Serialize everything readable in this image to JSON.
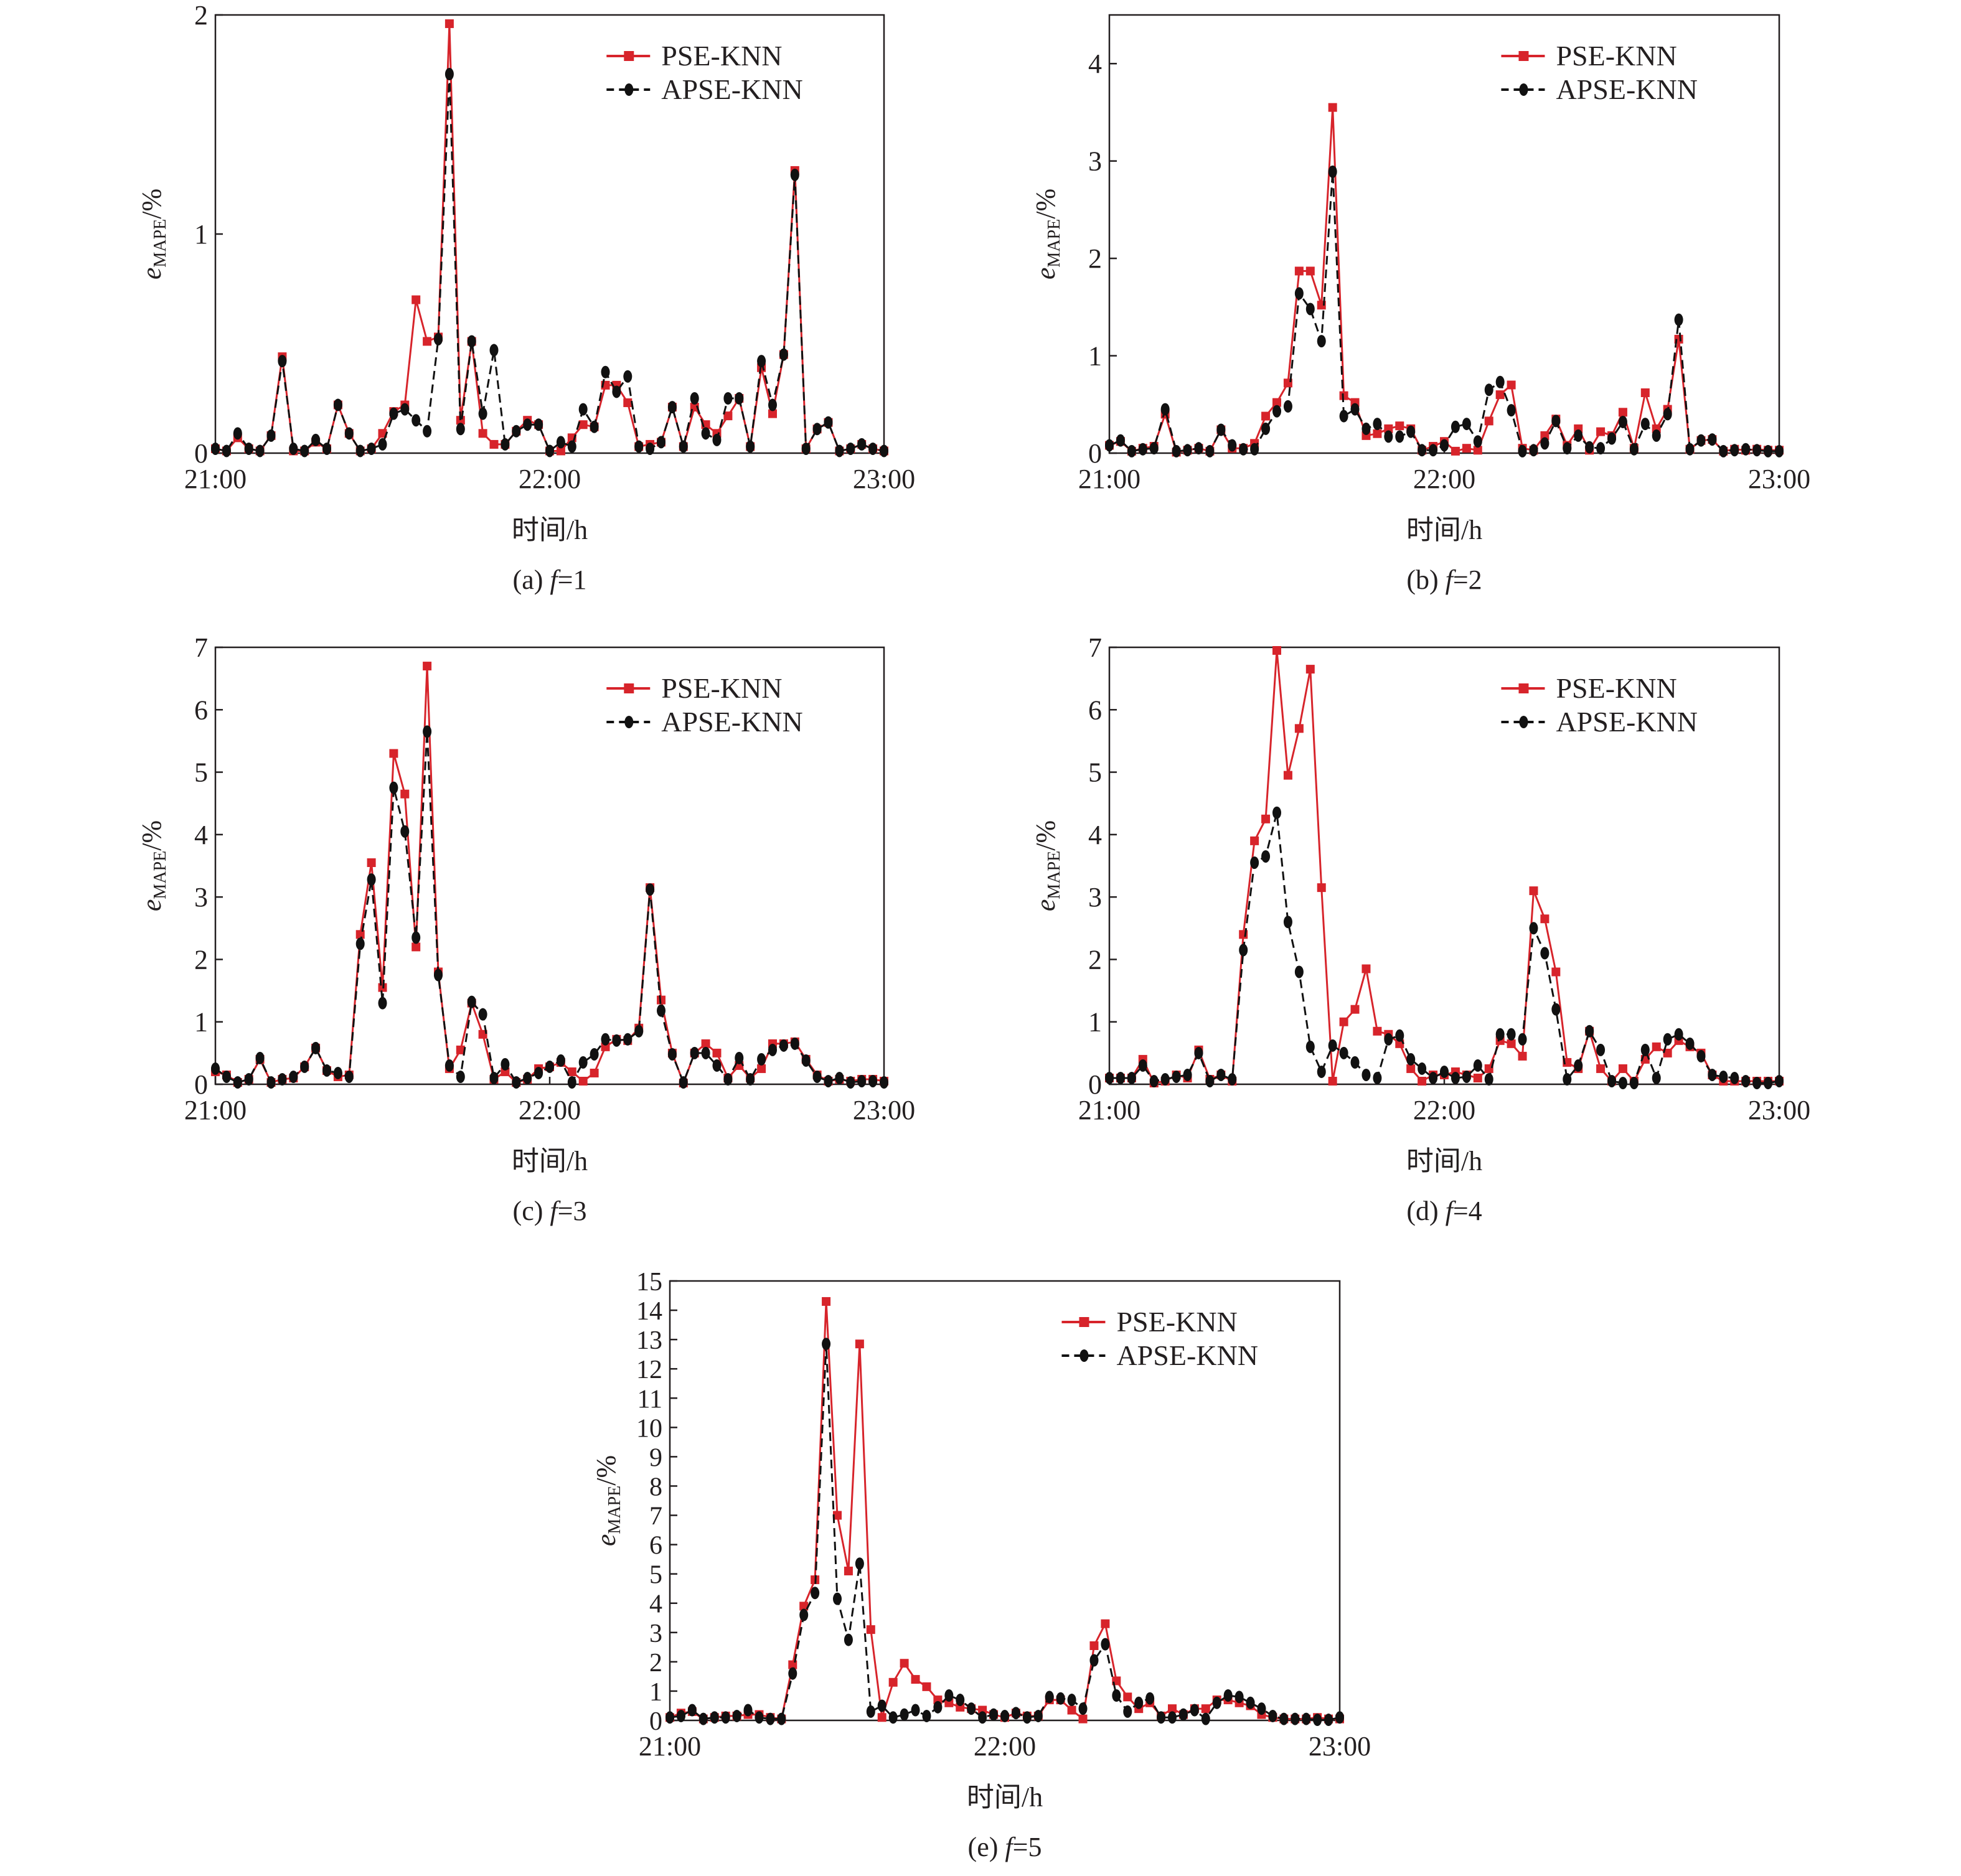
{
  "colors": {
    "pse": "#d7242b",
    "apse": "#111111",
    "axis": "#231f20"
  },
  "chart_data": [
    {
      "type": "line",
      "caption": {
        "label": "(a) ",
        "variable": "f",
        "value": "=1"
      },
      "xlabel": "时间/h",
      "ylabel": {
        "symbol": "e",
        "subscript": "MAPE",
        "unit": "/%"
      },
      "xticks": [
        "21:00",
        "22:00",
        "23:00"
      ],
      "ylim": [
        0,
        2
      ],
      "yticks": [
        0,
        1,
        2
      ],
      "legend": [
        "PSE-KNN",
        "APSE-KNN"
      ],
      "legend_position": "top-right",
      "grid": false,
      "x_points": "61 samples, 2-min interval, 21:00-23:00",
      "series": [
        {
          "name": "PSE-KNN",
          "values": [
            0.02,
            0.01,
            0.07,
            0.02,
            0.01,
            0.08,
            0.44,
            0.01,
            0.01,
            0.05,
            0.02,
            0.22,
            0.09,
            0.01,
            0.02,
            0.09,
            0.19,
            0.22,
            0.7,
            0.51,
            0.53,
            1.96,
            0.15,
            0.51,
            0.09,
            0.04,
            0.04,
            0.1,
            0.15,
            0.13,
            0.01,
            0.01,
            0.07,
            0.13,
            0.12,
            0.31,
            0.31,
            0.23,
            0.03,
            0.04,
            0.05,
            0.21,
            0.03,
            0.21,
            0.13,
            0.09,
            0.17,
            0.25,
            0.03,
            0.39,
            0.18,
            0.45,
            1.29,
            0.02,
            0.11,
            0.14,
            0.01,
            0.02,
            0.04,
            0.02,
            0.01
          ]
        },
        {
          "name": "APSE-KNN",
          "values": [
            0.02,
            0.01,
            0.09,
            0.02,
            0.01,
            0.08,
            0.42,
            0.02,
            0.01,
            0.06,
            0.02,
            0.22,
            0.09,
            0.01,
            0.02,
            0.04,
            0.18,
            0.2,
            0.15,
            0.1,
            0.52,
            1.73,
            0.11,
            0.51,
            0.18,
            0.47,
            0.04,
            0.1,
            0.13,
            0.13,
            0.01,
            0.05,
            0.03,
            0.2,
            0.12,
            0.37,
            0.28,
            0.35,
            0.03,
            0.02,
            0.05,
            0.21,
            0.03,
            0.25,
            0.09,
            0.06,
            0.25,
            0.25,
            0.03,
            0.42,
            0.22,
            0.45,
            1.27,
            0.02,
            0.11,
            0.14,
            0.01,
            0.02,
            0.04,
            0.02,
            0.01
          ]
        }
      ]
    },
    {
      "type": "line",
      "caption": {
        "label": "(b) ",
        "variable": "f",
        "value": "=2"
      },
      "xlabel": "时间/h",
      "ylabel": {
        "symbol": "e",
        "subscript": "MAPE",
        "unit": "/%"
      },
      "xticks": [
        "21:00",
        "22:00",
        "23:00"
      ],
      "ylim": [
        0,
        4.5
      ],
      "yticks": [
        0,
        1,
        2,
        3,
        4
      ],
      "legend": [
        "PSE-KNN",
        "APSE-KNN"
      ],
      "legend_position": "top-right",
      "grid": false,
      "series": [
        {
          "name": "PSE-KNN",
          "values": [
            0.08,
            0.12,
            0.02,
            0.05,
            0.07,
            0.4,
            0.01,
            0.03,
            0.05,
            0.02,
            0.24,
            0.05,
            0.05,
            0.1,
            0.38,
            0.52,
            0.72,
            1.87,
            1.87,
            1.52,
            3.55,
            0.59,
            0.52,
            0.18,
            0.2,
            0.25,
            0.28,
            0.25,
            0.03,
            0.07,
            0.12,
            0.02,
            0.05,
            0.03,
            0.33,
            0.6,
            0.7,
            0.05,
            0.03,
            0.18,
            0.35,
            0.08,
            0.25,
            0.03,
            0.22,
            0.18,
            0.42,
            0.05,
            0.62,
            0.25,
            0.45,
            1.17,
            0.04,
            0.13,
            0.14,
            0.02,
            0.04,
            0.03,
            0.04,
            0.03,
            0.03
          ]
        },
        {
          "name": "APSE-KNN",
          "values": [
            0.08,
            0.13,
            0.02,
            0.04,
            0.05,
            0.45,
            0.02,
            0.03,
            0.05,
            0.02,
            0.24,
            0.08,
            0.04,
            0.04,
            0.25,
            0.43,
            0.48,
            1.64,
            1.48,
            1.15,
            2.89,
            0.38,
            0.45,
            0.25,
            0.3,
            0.17,
            0.17,
            0.22,
            0.03,
            0.03,
            0.08,
            0.27,
            0.3,
            0.12,
            0.65,
            0.73,
            0.44,
            0.02,
            0.03,
            0.1,
            0.33,
            0.05,
            0.18,
            0.06,
            0.05,
            0.15,
            0.32,
            0.04,
            0.3,
            0.18,
            0.4,
            1.37,
            0.04,
            0.13,
            0.14,
            0.02,
            0.03,
            0.04,
            0.03,
            0.02,
            0.02
          ]
        }
      ]
    },
    {
      "type": "line",
      "caption": {
        "label": "(c) ",
        "variable": "f",
        "value": "=3"
      },
      "xlabel": "时间/h",
      "ylabel": {
        "symbol": "e",
        "subscript": "MAPE",
        "unit": "/%"
      },
      "xticks": [
        "21:00",
        "22:00",
        "23:00"
      ],
      "ylim": [
        0,
        7
      ],
      "yticks": [
        0,
        1,
        2,
        3,
        4,
        5,
        6,
        7
      ],
      "legend": [
        "PSE-KNN",
        "APSE-KNN"
      ],
      "legend_position": "top-right",
      "grid": false,
      "series": [
        {
          "name": "PSE-KNN",
          "values": [
            0.2,
            0.15,
            0.03,
            0.08,
            0.4,
            0.03,
            0.08,
            0.1,
            0.28,
            0.58,
            0.22,
            0.12,
            0.15,
            2.4,
            3.55,
            1.55,
            5.3,
            4.65,
            2.2,
            6.7,
            1.8,
            0.25,
            0.55,
            1.3,
            0.8,
            0.08,
            0.2,
            0.03,
            0.08,
            0.25,
            0.28,
            0.35,
            0.2,
            0.05,
            0.18,
            0.6,
            0.72,
            0.7,
            0.9,
            3.15,
            1.35,
            0.5,
            0.02,
            0.5,
            0.65,
            0.5,
            0.1,
            0.3,
            0.1,
            0.25,
            0.65,
            0.65,
            0.68,
            0.4,
            0.15,
            0.05,
            0.08,
            0.05,
            0.08,
            0.08,
            0.05
          ]
        },
        {
          "name": "APSE-KNN",
          "values": [
            0.25,
            0.12,
            0.03,
            0.08,
            0.42,
            0.03,
            0.08,
            0.12,
            0.28,
            0.58,
            0.22,
            0.18,
            0.12,
            2.25,
            3.28,
            1.3,
            4.75,
            4.05,
            2.35,
            5.65,
            1.75,
            0.3,
            0.12,
            1.32,
            1.12,
            0.1,
            0.32,
            0.03,
            0.1,
            0.18,
            0.28,
            0.38,
            0.03,
            0.35,
            0.48,
            0.72,
            0.7,
            0.72,
            0.85,
            3.12,
            1.18,
            0.48,
            0.03,
            0.5,
            0.5,
            0.3,
            0.08,
            0.42,
            0.08,
            0.4,
            0.55,
            0.62,
            0.65,
            0.38,
            0.12,
            0.05,
            0.1,
            0.03,
            0.05,
            0.05,
            0.03
          ]
        }
      ]
    },
    {
      "type": "line",
      "caption": {
        "label": "(d) ",
        "variable": "f",
        "value": "=4"
      },
      "xlabel": "时间/h",
      "ylabel": {
        "symbol": "e",
        "subscript": "MAPE",
        "unit": "/%"
      },
      "xticks": [
        "21:00",
        "22:00",
        "23:00"
      ],
      "ylim": [
        0,
        7
      ],
      "yticks": [
        0,
        1,
        2,
        3,
        4,
        5,
        6,
        7
      ],
      "legend": [
        "PSE-KNN",
        "APSE-KNN"
      ],
      "legend_position": "top-right",
      "grid": false,
      "series": [
        {
          "name": "PSE-KNN",
          "values": [
            0.1,
            0.1,
            0.1,
            0.4,
            0.02,
            0.05,
            0.15,
            0.1,
            0.55,
            0.08,
            0.15,
            0.05,
            2.4,
            3.9,
            4.25,
            6.95,
            4.95,
            5.7,
            6.65,
            3.15,
            0.05,
            1.0,
            1.2,
            1.85,
            0.85,
            0.8,
            0.65,
            0.25,
            0.05,
            0.15,
            0.15,
            0.2,
            0.15,
            0.1,
            0.25,
            0.7,
            0.65,
            0.45,
            3.1,
            2.65,
            1.8,
            0.35,
            0.25,
            0.85,
            0.25,
            0.05,
            0.25,
            0.05,
            0.4,
            0.6,
            0.5,
            0.7,
            0.6,
            0.5,
            0.15,
            0.05,
            0.05,
            0.05,
            0.05,
            0.05,
            0.05
          ]
        },
        {
          "name": "APSE-KNN",
          "values": [
            0.1,
            0.1,
            0.1,
            0.3,
            0.05,
            0.08,
            0.12,
            0.15,
            0.5,
            0.05,
            0.15,
            0.08,
            2.15,
            3.55,
            3.65,
            4.35,
            2.6,
            1.8,
            0.6,
            0.2,
            0.62,
            0.5,
            0.35,
            0.15,
            0.1,
            0.72,
            0.78,
            0.4,
            0.25,
            0.1,
            0.2,
            0.1,
            0.12,
            0.3,
            0.08,
            0.8,
            0.8,
            0.72,
            2.5,
            2.1,
            1.2,
            0.08,
            0.3,
            0.85,
            0.55,
            0.05,
            0.02,
            0.02,
            0.55,
            0.1,
            0.72,
            0.8,
            0.65,
            0.45,
            0.15,
            0.12,
            0.1,
            0.05,
            0.02,
            0.02,
            0.05
          ]
        }
      ]
    },
    {
      "type": "line",
      "caption": {
        "label": "(e) ",
        "variable": "f",
        "value": "=5"
      },
      "xlabel": "时间/h",
      "ylabel": {
        "symbol": "e",
        "subscript": "MAPE",
        "unit": "/%"
      },
      "xticks": [
        "21:00",
        "22:00",
        "23:00"
      ],
      "ylim": [
        0,
        15
      ],
      "yticks": [
        0,
        1,
        2,
        3,
        4,
        5,
        6,
        7,
        8,
        9,
        10,
        11,
        12,
        13,
        14,
        15
      ],
      "legend": [
        "PSE-KNN",
        "APSE-KNN"
      ],
      "legend_position": "top-right",
      "grid": false,
      "series": [
        {
          "name": "PSE-KNN",
          "values": [
            0.1,
            0.25,
            0.3,
            0.05,
            0.1,
            0.15,
            0.15,
            0.2,
            0.2,
            0.1,
            0.05,
            1.9,
            3.9,
            4.8,
            14.3,
            7.0,
            5.1,
            12.85,
            3.1,
            0.1,
            1.3,
            1.95,
            1.4,
            1.15,
            0.7,
            0.6,
            0.45,
            0.4,
            0.35,
            0.2,
            0.1,
            0.25,
            0.15,
            0.15,
            0.7,
            0.7,
            0.35,
            0.05,
            2.55,
            3.3,
            1.35,
            0.8,
            0.4,
            0.6,
            0.15,
            0.4,
            0.2,
            0.4,
            0.4,
            0.7,
            0.7,
            0.6,
            0.5,
            0.2,
            0.1,
            0.05,
            0.05,
            0.05,
            0.1,
            0.05,
            0.05
          ]
        },
        {
          "name": "APSE-KNN",
          "values": [
            0.1,
            0.15,
            0.35,
            0.05,
            0.1,
            0.1,
            0.15,
            0.35,
            0.1,
            0.05,
            0.05,
            1.6,
            3.6,
            4.35,
            12.85,
            4.15,
            2.75,
            5.35,
            0.3,
            0.5,
            0.1,
            0.2,
            0.35,
            0.15,
            0.45,
            0.85,
            0.7,
            0.4,
            0.1,
            0.2,
            0.15,
            0.25,
            0.1,
            0.15,
            0.8,
            0.75,
            0.7,
            0.4,
            2.05,
            2.6,
            0.85,
            0.3,
            0.6,
            0.75,
            0.1,
            0.1,
            0.2,
            0.35,
            0.05,
            0.6,
            0.85,
            0.8,
            0.6,
            0.4,
            0.15,
            0.05,
            0.05,
            0.05,
            0.02,
            0.02,
            0.1
          ]
        }
      ]
    }
  ]
}
